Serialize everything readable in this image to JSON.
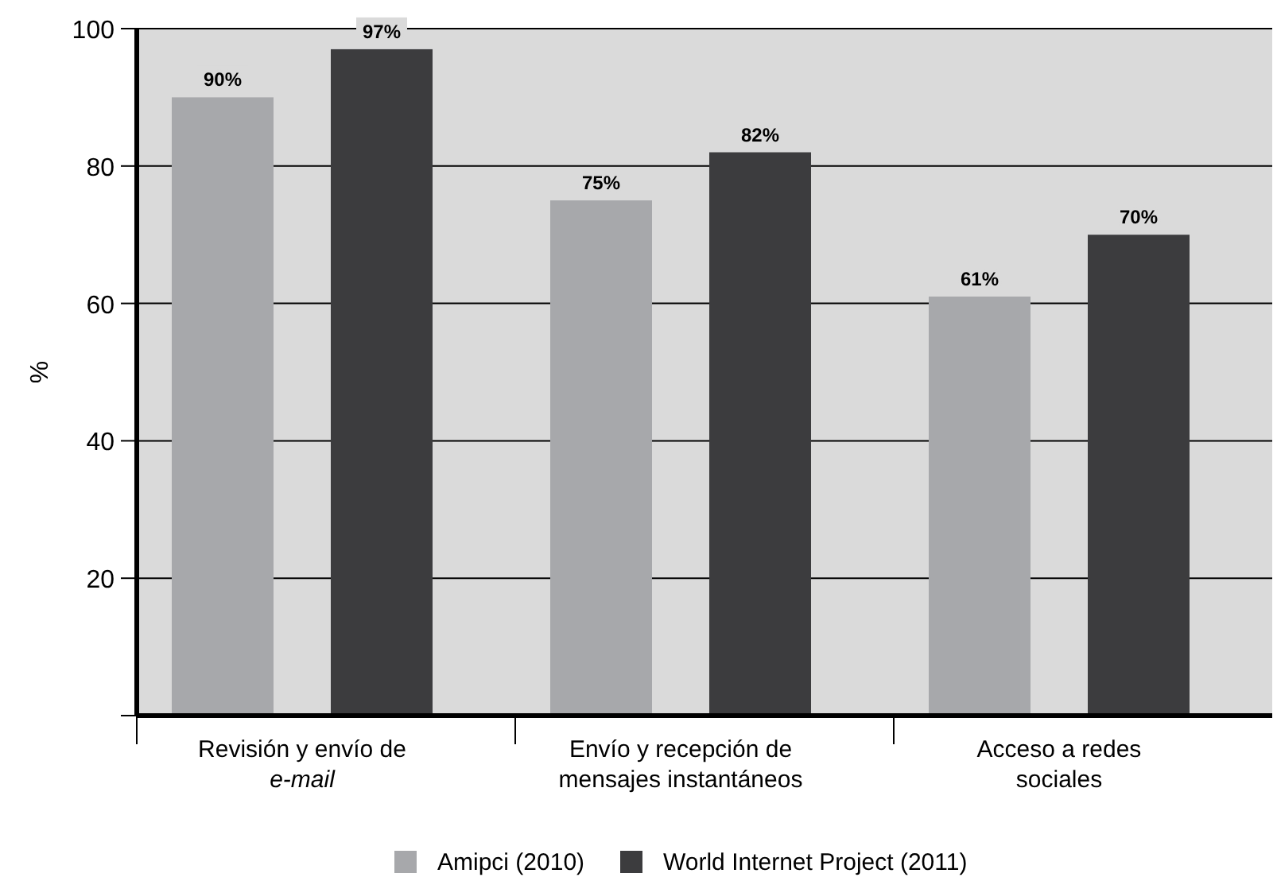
{
  "chart_data": {
    "type": "bar",
    "ylabel": "%",
    "categories": [
      "Revisión y envío de\ne-mail",
      "Envío y recepción de\nmensajes instantáneos",
      "Acceso a redes\nsociales"
    ],
    "series": [
      {
        "name": "Amipci (2010)",
        "color": "#a7a8ab",
        "values": [
          90,
          75,
          61
        ],
        "value_labels": [
          "90%",
          "75%",
          "61%"
        ]
      },
      {
        "name": "World Internet Project (2011)",
        "color": "#3c3c3e",
        "values": [
          97,
          82,
          70
        ],
        "value_labels": [
          "97%",
          "82%",
          "70%"
        ]
      }
    ],
    "ylim": [
      0,
      100
    ],
    "yticks": [
      {
        "value": 0,
        "label": null
      },
      20,
      40,
      60,
      80,
      100
    ],
    "grid": "y",
    "legend": "bottom"
  }
}
